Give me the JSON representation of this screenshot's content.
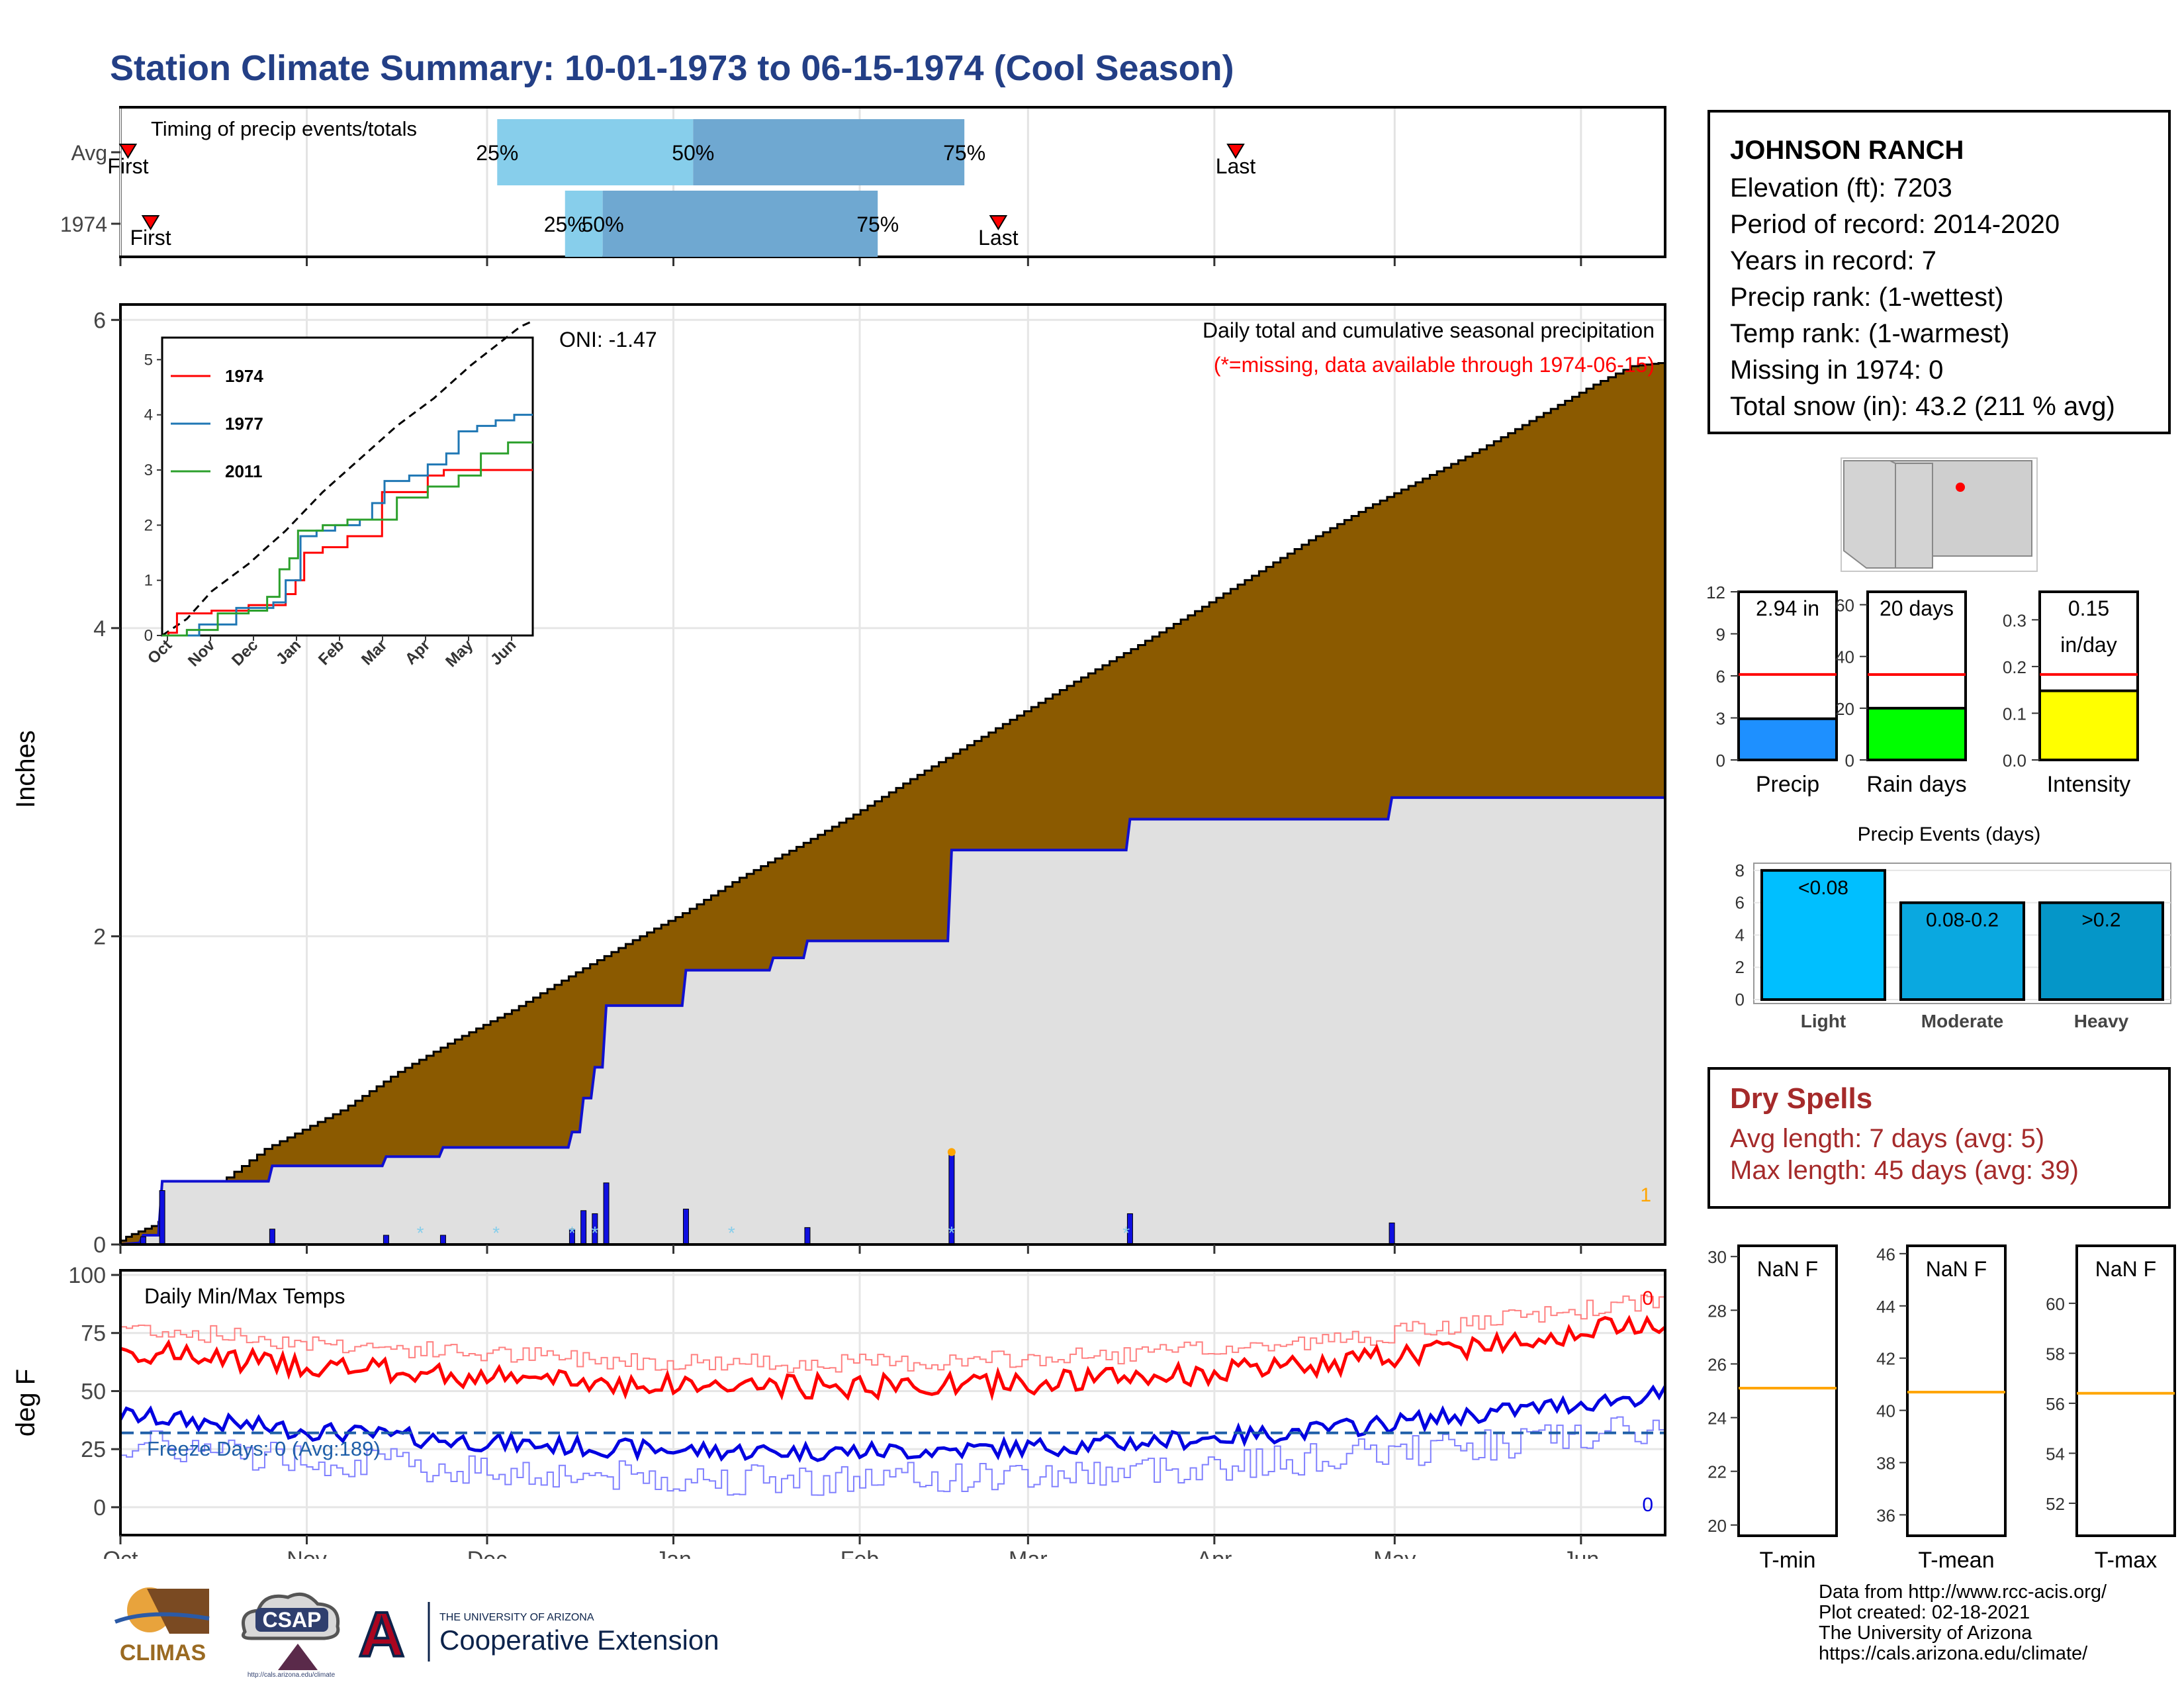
{
  "title": "Station Climate Summary: 10-01-1973 to 06-15-1974 (Cool Season)",
  "station": {
    "name": "JOHNSON RANCH",
    "lines": [
      "Elevation (ft): 7203",
      "Period of record: 2014-2020",
      "Years in record: 7",
      "Precip rank:  (1-wettest)",
      "Temp rank:  (1-warmest)",
      "Missing in 1974: 0",
      "Total snow (in): 43.2 (211 % avg)"
    ]
  },
  "colors": {
    "title": "#233f86",
    "cumulative_fill": "#8b5a00",
    "avg_fill": "#e0e0e0",
    "avg_line": "#1010d0",
    "daily_bar": "#1010e0",
    "q_light": "#87ceeb",
    "q_dark": "#6fa8d1",
    "precip_bar": "#1e90ff",
    "raindays_bar": "#00ff00",
    "intensity_bar": "#ffff00",
    "avg_marker": "#ff0000",
    "event_light": "#00bfff",
    "event_moderate": "#0aa8e0",
    "event_heavy": "#0596c8",
    "tmax_line": "#ff0000",
    "tmin_line": "#0000e0",
    "freeze_line": "#1f5fa8",
    "dry_spells": "#a52a2a",
    "tavg_line": "#ffa500",
    "map_point": "#ff0000"
  },
  "month_labels": [
    "Oct",
    "Nov",
    "Dec",
    "Jan",
    "Feb",
    "Mar",
    "Apr",
    "May",
    "Jun"
  ],
  "timing": {
    "title": "Timing of precip events/totals",
    "rows": [
      {
        "label": "Avg",
        "first_day": 2,
        "q25_day": 100,
        "q50_day": 152,
        "q75_day": 224,
        "last_day": 296,
        "q25": "25%",
        "q50": "50%",
        "q75": "75%",
        "first": "First",
        "last": "Last"
      },
      {
        "label": "1974",
        "first_day": 8,
        "q25_day": 118,
        "q50_day": 128,
        "q75_day": 201,
        "last_day": 233,
        "q25": "25%",
        "q50": "50%",
        "q75": "75%",
        "first": "First",
        "last": "Last"
      }
    ]
  },
  "main_chart": {
    "ylabel": "Inches",
    "yticks": [
      0,
      2,
      4,
      6
    ],
    "ylim": [
      0,
      6.1
    ],
    "title": "Daily total and cumulative seasonal precipitation",
    "note": "(*=missing, data available through 1974-06-15)",
    "oni": "ONI: -1.47",
    "right_marker": "1",
    "cumulative_avg": [
      [
        0,
        0
      ],
      [
        3,
        0.05
      ],
      [
        10,
        0.12
      ],
      [
        20,
        0.25
      ],
      [
        40,
        0.62
      ],
      [
        60,
        0.87
      ],
      [
        75,
        1.12
      ],
      [
        90,
        1.33
      ],
      [
        105,
        1.52
      ],
      [
        120,
        1.74
      ],
      [
        135,
        1.95
      ],
      [
        150,
        2.15
      ],
      [
        165,
        2.38
      ],
      [
        180,
        2.58
      ],
      [
        195,
        2.79
      ],
      [
        210,
        3.02
      ],
      [
        225,
        3.24
      ],
      [
        240,
        3.46
      ],
      [
        255,
        3.68
      ],
      [
        270,
        3.89
      ],
      [
        285,
        4.11
      ],
      [
        300,
        4.34
      ],
      [
        315,
        4.57
      ],
      [
        330,
        4.78
      ],
      [
        345,
        4.97
      ],
      [
        360,
        5.16
      ],
      [
        375,
        5.37
      ],
      [
        390,
        5.58
      ],
      [
        400,
        5.7
      ],
      [
        407,
        5.72
      ]
    ],
    "cumulative_1974": [
      [
        0,
        0
      ],
      [
        5,
        0.01
      ],
      [
        6,
        0.06
      ],
      [
        10,
        0.06
      ],
      [
        11,
        0.41
      ],
      [
        39,
        0.41
      ],
      [
        40,
        0.51
      ],
      [
        69,
        0.51
      ],
      [
        70,
        0.57
      ],
      [
        84,
        0.57
      ],
      [
        85,
        0.63
      ],
      [
        118,
        0.63
      ],
      [
        119,
        0.73
      ],
      [
        121,
        0.73
      ],
      [
        122,
        0.95
      ],
      [
        124,
        0.95
      ],
      [
        125,
        1.15
      ],
      [
        127,
        1.15
      ],
      [
        128,
        1.55
      ],
      [
        148,
        1.55
      ],
      [
        149,
        1.78
      ],
      [
        171,
        1.78
      ],
      [
        172,
        1.86
      ],
      [
        180,
        1.86
      ],
      [
        181,
        1.97
      ],
      [
        218,
        1.97
      ],
      [
        219,
        2.56
      ],
      [
        265,
        2.56
      ],
      [
        266,
        2.76
      ],
      [
        334,
        2.76
      ],
      [
        335,
        2.9
      ],
      [
        407,
        2.9
      ]
    ],
    "daily_1974": [
      [
        6,
        0.05
      ],
      [
        11,
        0.35
      ],
      [
        40,
        0.1
      ],
      [
        70,
        0.06
      ],
      [
        85,
        0.06
      ],
      [
        119,
        0.1
      ],
      [
        122,
        0.22
      ],
      [
        125,
        0.2
      ],
      [
        128,
        0.4
      ],
      [
        149,
        0.23
      ],
      [
        181,
        0.11
      ],
      [
        219,
        0.59
      ],
      [
        266,
        0.2
      ],
      [
        335,
        0.14
      ]
    ],
    "snow_marks": [
      79,
      99,
      119,
      125,
      161,
      219,
      265
    ],
    "orange_mark": [
      219,
      0.6
    ],
    "inset": {
      "yticks": [
        0,
        1,
        2,
        3,
        4,
        5
      ],
      "avg": [
        [
          0,
          0
        ],
        [
          20,
          0.3
        ],
        [
          40,
          0.8
        ],
        [
          70,
          1.3
        ],
        [
          100,
          1.9
        ],
        [
          130,
          2.6
        ],
        [
          160,
          3.2
        ],
        [
          190,
          3.8
        ],
        [
          220,
          4.3
        ],
        [
          250,
          4.9
        ],
        [
          270,
          5.25
        ],
        [
          290,
          5.6
        ],
        [
          300,
          5.7
        ]
      ],
      "legend": [
        {
          "name": "1974",
          "color": "#ff0000"
        },
        {
          "name": "1977",
          "color": "#1f77b4"
        },
        {
          "name": "2011",
          "color": "#2ca02c"
        }
      ],
      "series": [
        [
          [
            0,
            0
          ],
          [
            5,
            0.05
          ],
          [
            12,
            0.4
          ],
          [
            40,
            0.45
          ],
          [
            70,
            0.55
          ],
          [
            100,
            0.75
          ],
          [
            108,
            1.0
          ],
          [
            115,
            1.5
          ],
          [
            130,
            1.6
          ],
          [
            150,
            1.8
          ],
          [
            170,
            1.8
          ],
          [
            178,
            2.6
          ],
          [
            215,
            2.9
          ],
          [
            228,
            3.0
          ],
          [
            255,
            3.0
          ],
          [
            300,
            3.0
          ]
        ],
        [
          [
            0,
            0
          ],
          [
            30,
            0.2
          ],
          [
            60,
            0.5
          ],
          [
            90,
            0.6
          ],
          [
            100,
            1.0
          ],
          [
            112,
            1.8
          ],
          [
            125,
            1.9
          ],
          [
            140,
            2.0
          ],
          [
            160,
            2.1
          ],
          [
            170,
            2.4
          ],
          [
            180,
            2.8
          ],
          [
            200,
            2.9
          ],
          [
            215,
            3.1
          ],
          [
            230,
            3.3
          ],
          [
            240,
            3.7
          ],
          [
            255,
            3.8
          ],
          [
            270,
            3.9
          ],
          [
            285,
            4.0
          ],
          [
            300,
            4.0
          ]
        ],
        [
          [
            0,
            0
          ],
          [
            20,
            0.1
          ],
          [
            45,
            0.4
          ],
          [
            70,
            0.45
          ],
          [
            85,
            0.7
          ],
          [
            95,
            1.2
          ],
          [
            103,
            1.4
          ],
          [
            110,
            1.9
          ],
          [
            130,
            2.0
          ],
          [
            150,
            2.1
          ],
          [
            170,
            2.1
          ],
          [
            190,
            2.5
          ],
          [
            215,
            2.7
          ],
          [
            240,
            2.9
          ],
          [
            258,
            3.3
          ],
          [
            280,
            3.5
          ],
          [
            300,
            3.5
          ]
        ]
      ]
    }
  },
  "temp_chart": {
    "ylabel": "deg F",
    "yticks": [
      0,
      25,
      50,
      75,
      100
    ],
    "ylim": [
      -12,
      102
    ],
    "title": "Daily Min/Max Temps",
    "freeze_label": "Freeze Days: 0 (Avg:189)",
    "freeze_temp": 32,
    "max_count": "0",
    "min_count": "0"
  },
  "bars": [
    {
      "label": "Precip",
      "value_text": "2.94 in",
      "value": 2.94,
      "avg": 6.1,
      "yticks": [
        "0",
        "3",
        "6",
        "9",
        "12"
      ],
      "ymax": 12
    },
    {
      "label": "Rain days",
      "value_text": "20 days",
      "value": 20,
      "avg": 33,
      "yticks": [
        "0",
        "20",
        "40",
        "60"
      ],
      "ymax": 65
    },
    {
      "label": "Intensity",
      "value_text": "0.15",
      "value_text2": "in/day",
      "value": 0.148,
      "avg": 0.183,
      "yticks": [
        "0.0",
        "0.1",
        "0.2",
        "0.3"
      ],
      "ymax": 0.36
    }
  ],
  "events": {
    "title": "Precip Events (days)",
    "ymax": 8.2,
    "yticks": [
      "0",
      "2",
      "4",
      "6",
      "8"
    ],
    "categories": [
      "Light",
      "Moderate",
      "Heavy"
    ],
    "labels": [
      "<0.08",
      "0.08-0.2",
      ">0.2"
    ],
    "values": [
      8,
      6,
      6
    ]
  },
  "dry_spells": {
    "title": "Dry Spells",
    "avg_text": "Avg length: 7 days (avg: 5)",
    "max_text": "Max length: 45 days (avg: 39)"
  },
  "temp_bars": [
    {
      "label": "T-min",
      "value_text": "NaN F",
      "avg": 25.1,
      "ymin": 19.6,
      "ymax": 30.4,
      "yticks": [
        "20",
        "22",
        "24",
        "26",
        "28",
        "30"
      ],
      "tickvals": [
        20,
        22,
        24,
        26,
        28,
        30
      ]
    },
    {
      "label": "T-mean",
      "value_text": "NaN F",
      "avg": 40.7,
      "ymin": 35.2,
      "ymax": 46.3,
      "yticks": [
        "36",
        "38",
        "40",
        "42",
        "44",
        "46"
      ],
      "tickvals": [
        36,
        38,
        40,
        42,
        44,
        46
      ]
    },
    {
      "label": "T-max",
      "value_text": "NaN F",
      "avg": 56.4,
      "ymin": 50.7,
      "ymax": 62.3,
      "yticks": [
        "52",
        "54",
        "56",
        "58",
        "60"
      ],
      "tickvals": [
        52,
        54,
        56,
        58,
        60
      ]
    }
  ],
  "credits": {
    "line1": "Data from http://www.rcc-acis.org/",
    "line2": "Plot created: 02-18-2021",
    "line3": "The University of Arizona",
    "line4": "https://cals.arizona.edu/climate/"
  },
  "logos": {
    "climas": "CLIMAS",
    "csap": "CSAP",
    "csap_url": "http://cals.arizona.edu/climate",
    "ua_small": "THE UNIVERSITY OF ARIZONA",
    "ua_big": "Cooperative Extension"
  }
}
